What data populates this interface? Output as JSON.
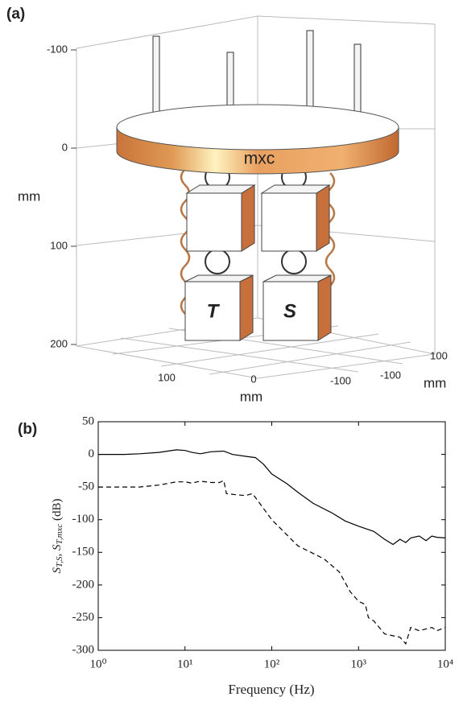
{
  "chart_data": [
    {
      "type": "scene3d",
      "panel": "(a)",
      "zticks": [
        -100,
        0,
        100,
        200
      ],
      "z_label": "mm",
      "xticks": [
        100,
        0,
        -100
      ],
      "x_label": "mm",
      "yticks": [
        100,
        -100
      ],
      "y_label": "mm",
      "labels": {
        "plate": "mxc",
        "left": "T",
        "right": "S"
      }
    },
    {
      "type": "line",
      "panel": "(b)",
      "x_scale": "log",
      "x_label": "Frequency (Hz)",
      "y_label": [
        "S",
        "T,S",
        ", S",
        "T,mxc",
        " (dB)"
      ],
      "xlim": [
        1,
        10000
      ],
      "xticks": [
        {
          "value": 1,
          "label": "10⁰"
        },
        {
          "value": 10,
          "label": "10¹"
        },
        {
          "value": 100,
          "label": "10²"
        },
        {
          "value": 1000,
          "label": "10³"
        },
        {
          "value": 10000,
          "label": "10⁴"
        }
      ],
      "ylim": [
        -300,
        50
      ],
      "yticks": [
        50,
        0,
        -50,
        -100,
        -150,
        -200,
        -250,
        -300
      ],
      "series": [
        {
          "color": "#000000",
          "dash": "solid",
          "x": [
            1,
            2,
            3,
            5,
            8,
            10,
            12,
            15,
            20,
            28,
            35,
            50,
            65,
            80,
            100,
            150,
            200,
            300,
            500,
            700,
            1000,
            1500,
            2000,
            2500,
            3000,
            3500,
            4000,
            5000,
            6000,
            7000,
            8000,
            10000
          ],
          "values": [
            0,
            0,
            1,
            3,
            7,
            6,
            3,
            1,
            4,
            5,
            0,
            -3,
            -5,
            -15,
            -30,
            -45,
            -58,
            -75,
            -90,
            -102,
            -110,
            -118,
            -130,
            -138,
            -130,
            -135,
            -128,
            -125,
            -132,
            -125,
            -127,
            -128
          ]
        },
        {
          "color": "#000000",
          "dash": "dashed",
          "x": [
            1,
            3,
            5,
            8,
            10,
            12,
            15,
            20,
            25,
            28,
            30,
            40,
            50,
            60,
            70,
            100,
            200,
            400,
            600,
            800,
            1000,
            1200,
            1300,
            1500,
            2000,
            3000,
            3500,
            4000,
            5000,
            7000,
            8000,
            10000
          ],
          "values": [
            -50,
            -50,
            -47,
            -42,
            -42,
            -44,
            -41,
            -43,
            -43,
            -40,
            -60,
            -62,
            -63,
            -60,
            -72,
            -100,
            -140,
            -160,
            -180,
            -210,
            -225,
            -230,
            -250,
            -255,
            -275,
            -280,
            -290,
            -265,
            -270,
            -265,
            -270,
            -265
          ]
        }
      ]
    }
  ]
}
